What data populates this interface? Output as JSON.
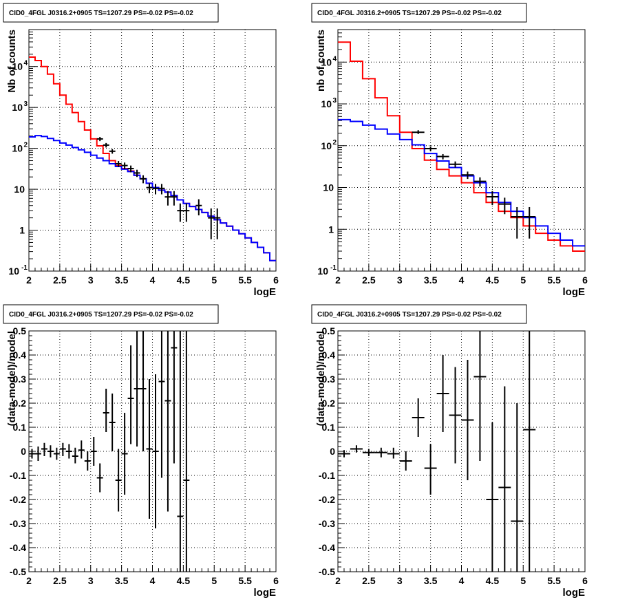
{
  "panels": [
    {
      "id": "top-left",
      "title": "CID0_4FGL J0316.2+0905 TS=1207.29 PS=-0.02 PS=-0.02",
      "chart_data": {
        "type": "line",
        "yscale": "log",
        "xlim": [
          2,
          6
        ],
        "ylim": [
          0.1,
          80000
        ],
        "grid": true,
        "xlabel": "logE",
        "ylabel": "Nb of counts",
        "xticks": [
          "2",
          "2.5",
          "3",
          "3.5",
          "4",
          "4.5",
          "5",
          "5.5",
          "6"
        ],
        "yticks": [
          {
            "v": 0.1,
            "b": "10",
            "e": "-1"
          },
          {
            "v": 1,
            "b": "1",
            "e": ""
          },
          {
            "v": 10,
            "b": "10",
            "e": ""
          },
          {
            "v": 100,
            "b": "10",
            "e": "2"
          },
          {
            "v": 1000,
            "b": "10",
            "e": "3"
          },
          {
            "v": 10000,
            "b": "10",
            "e": "4"
          }
        ],
        "series": [
          {
            "color": "#ff0000",
            "kind": "step",
            "x0": 2.0,
            "dx": 0.1,
            "values": [
              17000,
              14000,
              10000,
              6500,
              3800,
              2000,
              1200,
              750,
              450,
              280,
              170,
              115,
              75,
              50,
              38,
              32,
              28,
              22,
              18,
              14,
              11,
              9.5,
              8.5,
              7,
              5.5,
              4.5,
              3.8,
              3.2,
              2.7,
              2.2,
              1.8,
              1.5,
              1.25,
              1.0,
              0.82,
              0.65,
              0.5,
              0.38,
              0.28,
              0.18
            ]
          },
          {
            "color": "#0000ff",
            "kind": "step",
            "x0": 2.0,
            "dx": 0.1,
            "values": [
              190,
              205,
              195,
              175,
              155,
              135,
              120,
              105,
              92,
              80,
              68,
              58,
              50,
              42,
              36,
              31,
              27,
              22,
              18,
              14,
              11,
              9.5,
              8.5,
              7,
              5.5,
              4.5,
              3.8,
              3.2,
              2.7,
              2.2,
              1.8,
              1.5,
              1.25,
              1.0,
              0.82,
              0.65,
              0.5,
              0.38,
              0.28,
              0.18
            ]
          },
          {
            "color": "#000000",
            "kind": "points",
            "points": [
              {
                "x": 3.15,
                "y": 170,
                "xe": 0.05,
                "lo": 150,
                "hi": 190
              },
              {
                "x": 3.25,
                "y": 120,
                "xe": 0.05,
                "lo": 105,
                "hi": 135
              },
              {
                "x": 3.35,
                "y": 85,
                "xe": 0.05,
                "lo": 74,
                "hi": 96
              },
              {
                "x": 3.45,
                "y": 42,
                "xe": 0.05,
                "lo": 35,
                "hi": 49
              },
              {
                "x": 3.55,
                "y": 38,
                "xe": 0.05,
                "lo": 31,
                "hi": 45
              },
              {
                "x": 3.65,
                "y": 32,
                "xe": 0.05,
                "lo": 26,
                "hi": 38
              },
              {
                "x": 3.75,
                "y": 25,
                "xe": 0.05,
                "lo": 20,
                "hi": 30
              },
              {
                "x": 3.85,
                "y": 18,
                "xe": 0.05,
                "lo": 14,
                "hi": 22
              },
              {
                "x": 3.95,
                "y": 11,
                "xe": 0.05,
                "lo": 8,
                "hi": 14
              },
              {
                "x": 4.05,
                "y": 10.5,
                "xe": 0.05,
                "lo": 7.5,
                "hi": 13.5
              },
              {
                "x": 4.15,
                "y": 10.5,
                "xe": 0.05,
                "lo": 7.5,
                "hi": 13.5
              },
              {
                "x": 4.25,
                "y": 6.5,
                "xe": 0.05,
                "lo": 4,
                "hi": 9
              },
              {
                "x": 4.35,
                "y": 6.5,
                "xe": 0.05,
                "lo": 4,
                "hi": 9
              },
              {
                "x": 4.45,
                "y": 3,
                "xe": 0.05,
                "lo": 1.6,
                "hi": 4.5
              },
              {
                "x": 4.55,
                "y": 3,
                "xe": 0.05,
                "lo": 1.6,
                "hi": 4.5
              },
              {
                "x": 4.75,
                "y": 4,
                "xe": 0.05,
                "lo": 2.3,
                "hi": 5.7
              },
              {
                "x": 4.95,
                "y": 2,
                "xe": 0.05,
                "lo": 0.6,
                "hi": 3.4
              },
              {
                "x": 5.05,
                "y": 2,
                "xe": 0.05,
                "lo": 0.6,
                "hi": 3.4
              }
            ]
          }
        ]
      }
    },
    {
      "id": "top-right",
      "title": "CID0_4FGL J0316.2+0905 TS=1207.29 PS=-0.02 PS=-0.02",
      "chart_data": {
        "type": "line",
        "yscale": "log",
        "xlim": [
          2,
          6
        ],
        "ylim": [
          0.1,
          60000
        ],
        "grid": true,
        "xlabel": "logE",
        "ylabel": "nb of counts",
        "xticks": [
          "2",
          "2.5",
          "3",
          "3.5",
          "4",
          "4.5",
          "5",
          "5.5",
          "6"
        ],
        "yticks": [
          {
            "v": 0.1,
            "b": "10",
            "e": "-1"
          },
          {
            "v": 1,
            "b": "1",
            "e": ""
          },
          {
            "v": 10,
            "b": "10",
            "e": ""
          },
          {
            "v": 100,
            "b": "10",
            "e": "2"
          },
          {
            "v": 1000,
            "b": "10",
            "e": "3"
          },
          {
            "v": 10000,
            "b": "10",
            "e": "4"
          }
        ],
        "series": [
          {
            "color": "#ff0000",
            "kind": "step",
            "x0": 2.0,
            "dx": 0.2,
            "values": [
              30000,
              10500,
              4000,
              1400,
              520,
              210,
              85,
              45,
              27,
              19,
              13,
              7.5,
              4.4,
              2.7,
              1.9,
              1.2,
              0.8,
              0.55,
              0.4,
              0.3
            ]
          },
          {
            "color": "#0000ff",
            "kind": "step",
            "x0": 2.0,
            "dx": 0.2,
            "values": [
              420,
              380,
              310,
              250,
              190,
              140,
              105,
              65,
              43,
              30,
              19,
              13,
              7.5,
              4.4,
              2.7,
              1.9,
              1.2,
              0.8,
              0.55,
              0.4
            ]
          },
          {
            "color": "#000000",
            "kind": "points",
            "points": [
              {
                "x": 3.3,
                "y": 210,
                "xe": 0.1,
                "lo": 190,
                "hi": 235
              },
              {
                "x": 3.5,
                "y": 85,
                "xe": 0.1,
                "lo": 74,
                "hi": 96
              },
              {
                "x": 3.7,
                "y": 55,
                "xe": 0.1,
                "lo": 47,
                "hi": 63
              },
              {
                "x": 3.9,
                "y": 36,
                "xe": 0.1,
                "lo": 30,
                "hi": 42
              },
              {
                "x": 4.1,
                "y": 20,
                "xe": 0.1,
                "lo": 16,
                "hi": 24
              },
              {
                "x": 4.3,
                "y": 14,
                "xe": 0.1,
                "lo": 10.5,
                "hi": 17.5
              },
              {
                "x": 4.5,
                "y": 6,
                "xe": 0.1,
                "lo": 3.8,
                "hi": 8.2
              },
              {
                "x": 4.7,
                "y": 4,
                "xe": 0.1,
                "lo": 2.3,
                "hi": 5.7
              },
              {
                "x": 4.9,
                "y": 2,
                "xe": 0.1,
                "lo": 0.6,
                "hi": 3.4
              },
              {
                "x": 5.1,
                "y": 2,
                "xe": 0.1,
                "lo": 0.6,
                "hi": 3.4
              }
            ]
          }
        ]
      }
    },
    {
      "id": "bottom-left",
      "title": "CID0_4FGL J0316.2+0905 TS=1207.29 PS=-0.02 PS=-0.02",
      "chart_data": {
        "type": "scatter",
        "yscale": "linear",
        "xlim": [
          2,
          6
        ],
        "ylim": [
          -0.5,
          0.5
        ],
        "grid": true,
        "xlabel": "logE",
        "ylabel": "(data-model)/model",
        "xticks": [
          "2",
          "2.5",
          "3",
          "3.5",
          "4",
          "4.5",
          "5",
          "5.5",
          "6"
        ],
        "yticks": [
          "-0.5",
          "-0.4",
          "-0.3",
          "-0.2",
          "-0.1",
          "0",
          "0.1",
          "0.2",
          "0.3",
          "0.4",
          "0.5"
        ],
        "series": [
          {
            "color": "#000000",
            "kind": "points",
            "points": [
              {
                "x": 2.05,
                "y": -0.01,
                "xe": 0.05,
                "lo": -0.03,
                "hi": 0.01
              },
              {
                "x": 2.15,
                "y": -0.01,
                "xe": 0.05,
                "lo": -0.04,
                "hi": 0.02
              },
              {
                "x": 2.25,
                "y": 0.01,
                "xe": 0.05,
                "lo": -0.02,
                "hi": 0.035
              },
              {
                "x": 2.35,
                "y": 0.0,
                "xe": 0.05,
                "lo": -0.025,
                "hi": 0.025
              },
              {
                "x": 2.45,
                "y": -0.01,
                "xe": 0.05,
                "lo": -0.035,
                "hi": 0.015
              },
              {
                "x": 2.55,
                "y": 0.01,
                "xe": 0.05,
                "lo": -0.02,
                "hi": 0.035
              },
              {
                "x": 2.65,
                "y": 0.0,
                "xe": 0.05,
                "lo": -0.03,
                "hi": 0.03
              },
              {
                "x": 2.75,
                "y": -0.02,
                "xe": 0.05,
                "lo": -0.05,
                "hi": 0.015
              },
              {
                "x": 2.85,
                "y": 0.005,
                "xe": 0.05,
                "lo": -0.03,
                "hi": 0.045
              },
              {
                "x": 2.95,
                "y": -0.04,
                "xe": 0.05,
                "lo": -0.08,
                "hi": 0.0
              },
              {
                "x": 3.05,
                "y": 0.0,
                "xe": 0.05,
                "lo": -0.06,
                "hi": 0.06
              },
              {
                "x": 3.15,
                "y": -0.11,
                "xe": 0.05,
                "lo": -0.17,
                "hi": -0.05
              },
              {
                "x": 3.25,
                "y": 0.16,
                "xe": 0.05,
                "lo": 0.08,
                "hi": 0.26
              },
              {
                "x": 3.35,
                "y": 0.12,
                "xe": 0.05,
                "lo": 0.0,
                "hi": 0.24
              },
              {
                "x": 3.45,
                "y": -0.12,
                "xe": 0.05,
                "lo": -0.25,
                "hi": 0.01
              },
              {
                "x": 3.55,
                "y": -0.01,
                "xe": 0.05,
                "lo": -0.18,
                "hi": 0.16
              },
              {
                "x": 3.65,
                "y": 0.22,
                "xe": 0.05,
                "lo": 0.03,
                "hi": 0.44
              },
              {
                "x": 3.75,
                "y": 0.26,
                "xe": 0.05,
                "lo": 0.02,
                "hi": 0.5
              },
              {
                "x": 3.85,
                "y": 0.26,
                "xe": 0.05,
                "lo": 0.0,
                "hi": 0.5
              },
              {
                "x": 3.95,
                "y": 0.01,
                "xe": 0.05,
                "lo": -0.28,
                "hi": 0.3
              },
              {
                "x": 4.05,
                "y": 0.0,
                "xe": 0.05,
                "lo": -0.32,
                "hi": 0.32
              },
              {
                "x": 4.15,
                "y": 0.29,
                "xe": 0.05,
                "lo": -0.11,
                "hi": 0.5
              },
              {
                "x": 4.25,
                "y": 0.21,
                "xe": 0.05,
                "lo": -0.25,
                "hi": 0.5
              },
              {
                "x": 4.35,
                "y": 0.43,
                "xe": 0.05,
                "lo": -0.05,
                "hi": 0.5
              },
              {
                "x": 4.45,
                "y": -0.27,
                "xe": 0.05,
                "lo": -0.5,
                "hi": 0.5
              },
              {
                "x": 4.55,
                "y": -0.12,
                "xe": 0.05,
                "lo": -0.5,
                "hi": 0.5
              }
            ]
          }
        ]
      }
    },
    {
      "id": "bottom-right",
      "title": "CID0_4FGL J0316.2+0905 TS=1207.29 PS=-0.02 PS=-0.02",
      "chart_data": {
        "type": "scatter",
        "yscale": "linear",
        "xlim": [
          2,
          6
        ],
        "ylim": [
          -0.5,
          0.5
        ],
        "grid": true,
        "xlabel": "logE",
        "ylabel": "(data-model)/model",
        "xticks": [
          "2",
          "2.5",
          "3",
          "3.5",
          "4",
          "4.5",
          "5",
          "5.5",
          "6"
        ],
        "yticks": [
          "-0.5",
          "-0.4",
          "-0.3",
          "-0.2",
          "-0.1",
          "0",
          "0.1",
          "0.2",
          "0.3",
          "0.4",
          "0.5"
        ],
        "series": [
          {
            "color": "#000000",
            "kind": "points",
            "points": [
              {
                "x": 2.1,
                "y": -0.01,
                "xe": 0.1,
                "lo": -0.025,
                "hi": 0.005
              },
              {
                "x": 2.3,
                "y": 0.01,
                "xe": 0.1,
                "lo": -0.005,
                "hi": 0.025
              },
              {
                "x": 2.5,
                "y": -0.005,
                "xe": 0.1,
                "lo": -0.02,
                "hi": 0.01
              },
              {
                "x": 2.7,
                "y": -0.005,
                "xe": 0.1,
                "lo": -0.025,
                "hi": 0.015
              },
              {
                "x": 2.9,
                "y": -0.01,
                "xe": 0.1,
                "lo": -0.03,
                "hi": 0.015
              },
              {
                "x": 3.1,
                "y": -0.04,
                "xe": 0.1,
                "lo": -0.08,
                "hi": 0.0
              },
              {
                "x": 3.3,
                "y": 0.14,
                "xe": 0.1,
                "lo": 0.06,
                "hi": 0.22
              },
              {
                "x": 3.5,
                "y": -0.07,
                "xe": 0.1,
                "lo": -0.18,
                "hi": 0.03
              },
              {
                "x": 3.7,
                "y": 0.24,
                "xe": 0.1,
                "lo": 0.08,
                "hi": 0.4
              },
              {
                "x": 3.9,
                "y": 0.15,
                "xe": 0.1,
                "lo": -0.05,
                "hi": 0.35
              },
              {
                "x": 4.1,
                "y": 0.13,
                "xe": 0.1,
                "lo": -0.12,
                "hi": 0.38
              },
              {
                "x": 4.3,
                "y": 0.31,
                "xe": 0.1,
                "lo": -0.04,
                "hi": 0.5
              },
              {
                "x": 4.5,
                "y": -0.2,
                "xe": 0.1,
                "lo": -0.5,
                "hi": 0.12
              },
              {
                "x": 4.7,
                "y": -0.15,
                "xe": 0.1,
                "lo": -0.5,
                "hi": 0.27
              },
              {
                "x": 4.9,
                "y": -0.29,
                "xe": 0.1,
                "lo": -0.5,
                "hi": 0.2
              },
              {
                "x": 5.1,
                "y": 0.09,
                "xe": 0.1,
                "lo": -0.5,
                "hi": 0.5
              }
            ]
          }
        ]
      }
    }
  ]
}
